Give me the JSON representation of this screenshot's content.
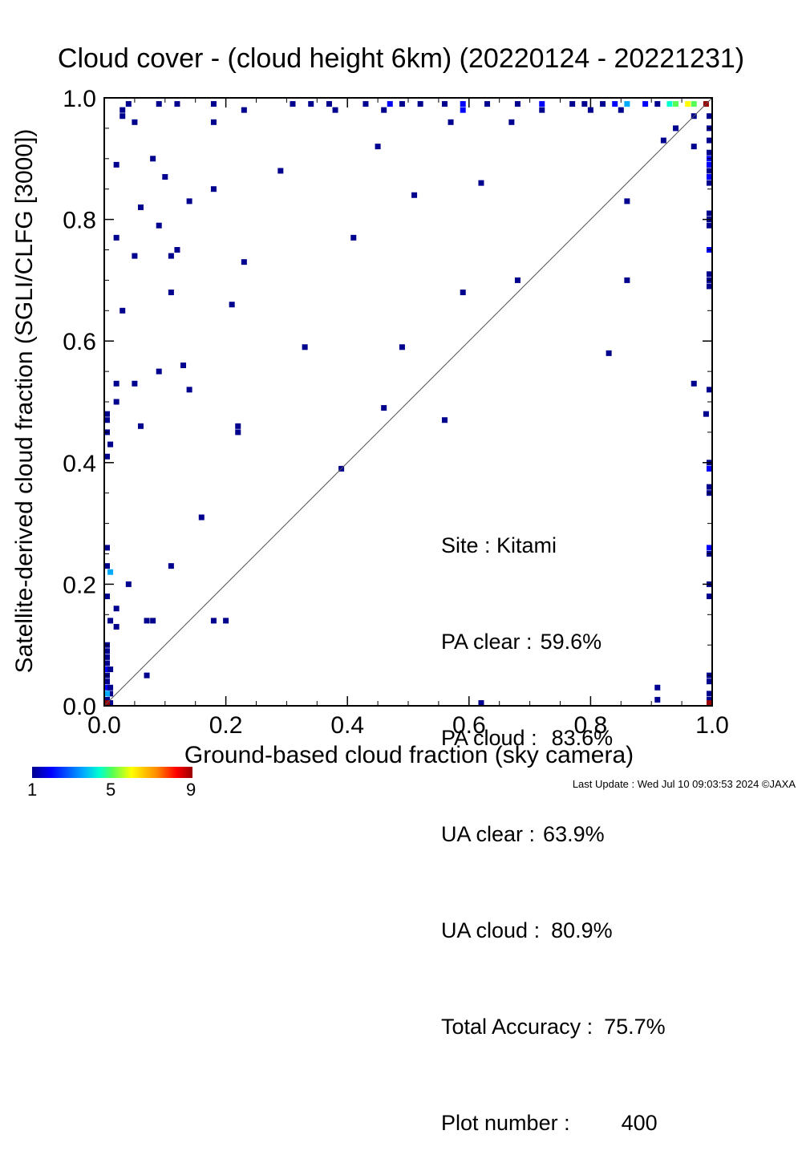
{
  "title": "Cloud cover - (cloud height 6km)  (20220124 - 20221231)",
  "stats": [
    {
      "label": "Site : ",
      "value": "Kitami"
    },
    {
      "label": "PA clear :",
      "value": "59.6%"
    },
    {
      "label": "PA cloud :",
      "value": "83.6%"
    },
    {
      "label": "UA clear :",
      "value": "63.9%"
    },
    {
      "label": "UA cloud :",
      "value": "80.9%"
    },
    {
      "label": "Total Accuracy :",
      "value": "75.7%"
    },
    {
      "label": "Plot number :",
      "value": "400"
    }
  ],
  "colorbar": {
    "labels": [
      "1",
      "5",
      "9"
    ]
  },
  "footer": "Last Update : Wed Jul 10 09:03:53 2024  ©JAXA",
  "chart_data": {
    "type": "heatmap",
    "title": "Cloud cover - (cloud height 6km)  (20220124 - 20221231)",
    "xlabel": "Ground-based cloud fraction (sky camera)",
    "ylabel": "Satellite-derived cloud fraction (SGLI/CLFG [3000])",
    "xlim": [
      0,
      1
    ],
    "ylim": [
      0,
      1
    ],
    "xticks": [
      "0.0",
      "0.2",
      "0.4",
      "0.6",
      "0.8",
      "1.0"
    ],
    "yticks": [
      "0.0",
      "0.2",
      "0.4",
      "0.6",
      "0.8",
      "1.0"
    ],
    "diagonal": true,
    "colorscale": {
      "min": 1,
      "max": 9,
      "colors": [
        "#00008f",
        "#0000ff",
        "#00aaff",
        "#00ffd0",
        "#55ff55",
        "#ffff00",
        "#ff8800",
        "#ff0000",
        "#9a0000"
      ]
    },
    "points": [
      [
        0.04,
        0.99,
        1
      ],
      [
        0.09,
        0.99,
        1
      ],
      [
        0.12,
        0.99,
        1
      ],
      [
        0.18,
        0.99,
        1
      ],
      [
        0.31,
        0.99,
        1
      ],
      [
        0.34,
        0.99,
        1
      ],
      [
        0.37,
        0.99,
        1
      ],
      [
        0.43,
        0.99,
        1
      ],
      [
        0.47,
        0.99,
        2
      ],
      [
        0.49,
        0.99,
        1
      ],
      [
        0.52,
        0.99,
        1
      ],
      [
        0.56,
        0.99,
        1
      ],
      [
        0.59,
        0.99,
        2
      ],
      [
        0.63,
        0.99,
        1
      ],
      [
        0.68,
        0.99,
        1
      ],
      [
        0.72,
        0.99,
        2
      ],
      [
        0.77,
        0.99,
        1
      ],
      [
        0.79,
        0.99,
        1
      ],
      [
        0.82,
        0.99,
        1
      ],
      [
        0.84,
        0.99,
        2
      ],
      [
        0.86,
        0.99,
        3
      ],
      [
        0.89,
        0.99,
        2
      ],
      [
        0.91,
        0.99,
        1
      ],
      [
        0.93,
        0.99,
        4
      ],
      [
        0.94,
        0.99,
        5
      ],
      [
        0.96,
        0.99,
        6
      ],
      [
        0.97,
        0.99,
        5
      ],
      [
        0.99,
        0.99,
        9
      ],
      [
        0.03,
        0.98,
        1
      ],
      [
        0.23,
        0.98,
        1
      ],
      [
        0.38,
        0.98,
        1
      ],
      [
        0.46,
        0.98,
        1
      ],
      [
        0.59,
        0.98,
        2
      ],
      [
        0.72,
        0.98,
        1
      ],
      [
        0.8,
        0.98,
        1
      ],
      [
        0.85,
        0.98,
        1
      ],
      [
        0.03,
        0.97,
        1
      ],
      [
        0.05,
        0.96,
        1
      ],
      [
        0.18,
        0.96,
        1
      ],
      [
        0.57,
        0.96,
        1
      ],
      [
        0.67,
        0.96,
        1
      ],
      [
        0.94,
        0.95,
        1
      ],
      [
        0.97,
        0.97,
        1
      ],
      [
        0.92,
        0.93,
        1
      ],
      [
        0.08,
        0.9,
        1
      ],
      [
        0.45,
        0.92,
        1
      ],
      [
        0.97,
        0.92,
        1
      ],
      [
        0.02,
        0.89,
        1
      ],
      [
        0.29,
        0.88,
        1
      ],
      [
        0.1,
        0.87,
        1
      ],
      [
        0.62,
        0.86,
        1
      ],
      [
        0.18,
        0.85,
        1
      ],
      [
        0.51,
        0.84,
        1
      ],
      [
        0.14,
        0.83,
        1
      ],
      [
        0.86,
        0.83,
        1
      ],
      [
        0.06,
        0.82,
        1
      ],
      [
        0.09,
        0.79,
        1
      ],
      [
        0.02,
        0.77,
        1
      ],
      [
        0.41,
        0.77,
        1
      ],
      [
        0.12,
        0.75,
        1
      ],
      [
        0.05,
        0.74,
        1
      ],
      [
        0.11,
        0.74,
        1
      ],
      [
        0.23,
        0.73,
        1
      ],
      [
        0.68,
        0.7,
        1
      ],
      [
        0.86,
        0.7,
        1
      ],
      [
        0.11,
        0.68,
        1
      ],
      [
        0.59,
        0.68,
        1
      ],
      [
        0.21,
        0.66,
        1
      ],
      [
        0.03,
        0.65,
        1
      ],
      [
        0.33,
        0.59,
        1
      ],
      [
        0.49,
        0.59,
        1
      ],
      [
        0.83,
        0.58,
        1
      ],
      [
        0.13,
        0.56,
        1
      ],
      [
        0.09,
        0.55,
        1
      ],
      [
        0.02,
        0.53,
        1
      ],
      [
        0.05,
        0.53,
        1
      ],
      [
        0.97,
        0.53,
        1
      ],
      [
        0.14,
        0.52,
        1
      ],
      [
        0.02,
        0.5,
        1
      ],
      [
        0.46,
        0.49,
        1
      ],
      [
        0.99,
        0.48,
        1
      ],
      [
        0.56,
        0.47,
        1
      ],
      [
        0.06,
        0.46,
        1
      ],
      [
        0.22,
        0.46,
        1
      ],
      [
        0.22,
        0.45,
        1
      ],
      [
        0.01,
        0.43,
        1
      ],
      [
        0.39,
        0.39,
        1
      ],
      [
        0.16,
        0.31,
        1
      ],
      [
        0.0,
        0.26,
        1
      ],
      [
        0.11,
        0.23,
        1
      ],
      [
        0.0,
        0.23,
        1
      ],
      [
        0.01,
        0.22,
        3
      ],
      [
        0.04,
        0.2,
        1
      ],
      [
        0.0,
        0.18,
        1
      ],
      [
        0.02,
        0.16,
        1
      ],
      [
        0.07,
        0.14,
        1
      ],
      [
        0.08,
        0.14,
        1
      ],
      [
        0.18,
        0.14,
        1
      ],
      [
        0.2,
        0.14,
        1
      ],
      [
        0.01,
        0.14,
        1
      ],
      [
        0.02,
        0.13,
        1
      ],
      [
        0.07,
        0.05,
        1
      ],
      [
        0.91,
        0.03,
        1
      ],
      [
        0.91,
        0.01,
        1
      ],
      [
        0.62,
        0.0,
        1
      ],
      [
        0.0,
        0.48,
        1
      ],
      [
        0.0,
        0.47,
        1
      ],
      [
        0.0,
        0.45,
        1
      ],
      [
        0.0,
        0.41,
        1
      ],
      [
        0.0,
        0.1,
        1
      ],
      [
        0.0,
        0.09,
        1
      ],
      [
        0.0,
        0.08,
        1
      ],
      [
        0.0,
        0.07,
        1
      ],
      [
        0.0,
        0.06,
        2
      ],
      [
        0.0,
        0.05,
        1
      ],
      [
        0.0,
        0.04,
        1
      ],
      [
        0.01,
        0.06,
        1
      ],
      [
        0.0,
        0.03,
        2
      ],
      [
        0.01,
        0.03,
        1
      ],
      [
        0.01,
        0.02,
        1
      ],
      [
        0.0,
        0.02,
        3
      ],
      [
        0.0,
        0.01,
        1
      ],
      [
        0.01,
        0.0,
        1
      ],
      [
        0.0,
        0.0,
        9
      ],
      [
        1.0,
        0.97,
        1
      ],
      [
        1.0,
        0.95,
        1
      ],
      [
        1.0,
        0.93,
        1
      ],
      [
        1.0,
        0.91,
        1
      ],
      [
        1.0,
        0.9,
        2
      ],
      [
        1.0,
        0.89,
        2
      ],
      [
        1.0,
        0.88,
        1
      ],
      [
        1.0,
        0.87,
        2
      ],
      [
        1.0,
        0.86,
        1
      ],
      [
        1.0,
        0.81,
        1
      ],
      [
        1.0,
        0.8,
        1
      ],
      [
        1.0,
        0.79,
        1
      ],
      [
        1.0,
        0.75,
        2
      ],
      [
        1.0,
        0.71,
        1
      ],
      [
        1.0,
        0.7,
        1
      ],
      [
        1.0,
        0.69,
        1
      ],
      [
        1.0,
        0.52,
        1
      ],
      [
        1.0,
        0.4,
        1
      ],
      [
        1.0,
        0.39,
        2
      ],
      [
        1.0,
        0.36,
        1
      ],
      [
        1.0,
        0.35,
        1
      ],
      [
        1.0,
        0.26,
        2
      ],
      [
        1.0,
        0.25,
        1
      ],
      [
        1.0,
        0.2,
        1
      ],
      [
        1.0,
        0.18,
        1
      ],
      [
        1.0,
        0.05,
        1
      ],
      [
        1.0,
        0.04,
        1
      ],
      [
        1.0,
        0.02,
        1
      ],
      [
        1.0,
        0.01,
        1
      ],
      [
        1.0,
        0.0,
        9
      ]
    ]
  }
}
